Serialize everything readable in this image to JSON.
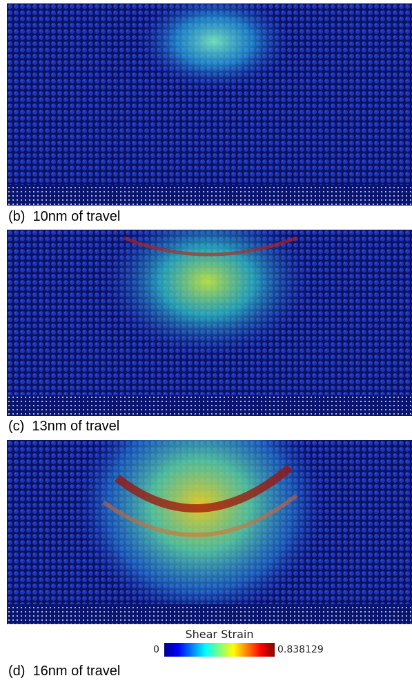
{
  "panels": [
    {
      "caption": "(b)  10nm of travel"
    },
    {
      "caption": "(c)  13nm of travel"
    },
    {
      "caption": "(d)  16nm of travel"
    }
  ],
  "colorbar": {
    "title": "Shear Strain",
    "min": 0,
    "max": 0.838129
  }
}
